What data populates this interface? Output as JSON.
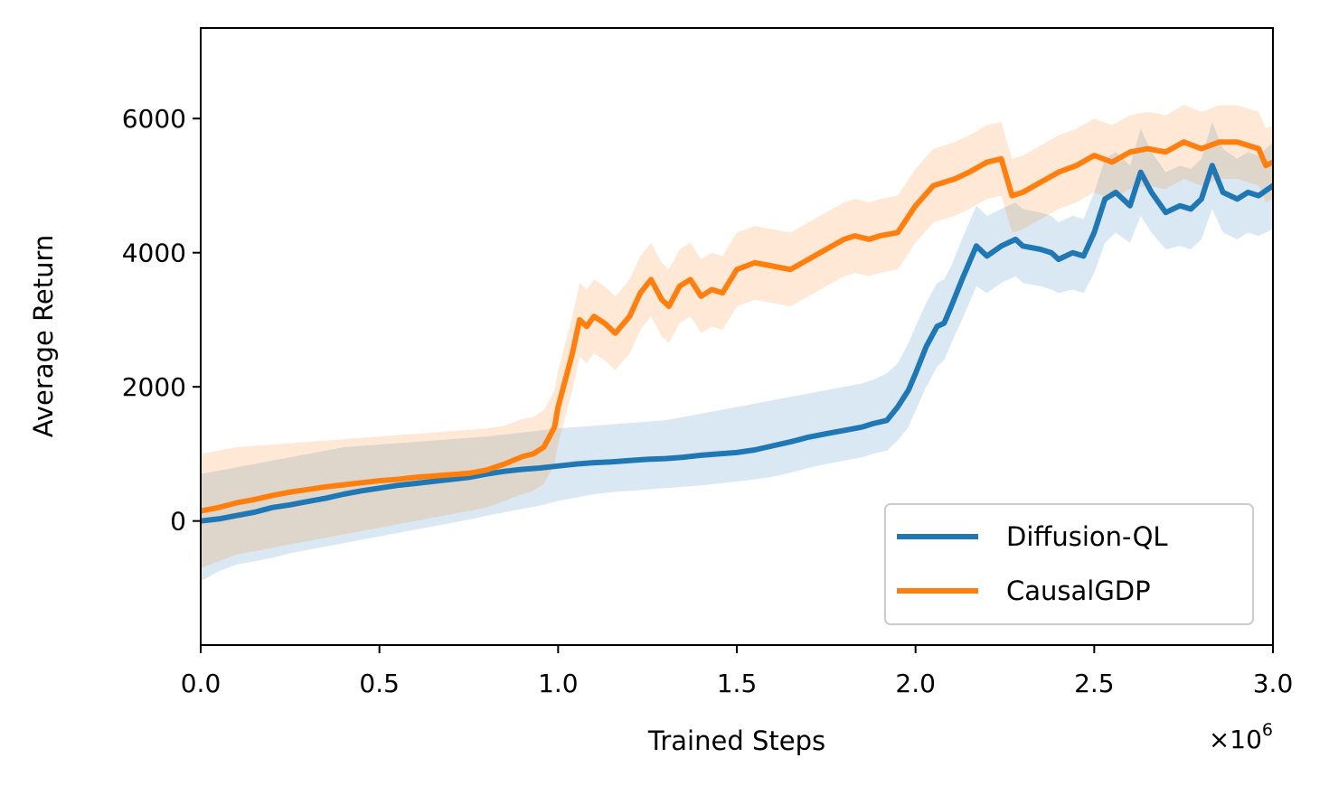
{
  "chart_data": {
    "type": "line",
    "xlabel": "Trained Steps",
    "ylabel": "Average Return",
    "x_multiplier_label": "×10",
    "x_multiplier_exp": "6",
    "xlim": [
      0,
      3000000
    ],
    "ylim": [
      -1850,
      7350
    ],
    "x_ticks": [
      0,
      500000,
      1000000,
      1500000,
      2000000,
      2500000,
      3000000
    ],
    "x_tick_labels": [
      "0.0",
      "0.5",
      "1.0",
      "1.5",
      "2.0",
      "2.5",
      "3.0"
    ],
    "y_ticks": [
      0,
      2000,
      4000,
      6000
    ],
    "y_tick_labels": [
      "0",
      "2000",
      "4000",
      "6000"
    ],
    "grid": false,
    "legend_position": "lower-right",
    "series": [
      {
        "name": "Diffusion-QL",
        "color": "#1f77b4",
        "band_opacity": 0.17,
        "x": [
          0,
          50000,
          100000,
          150000,
          200000,
          250000,
          300000,
          350000,
          400000,
          450000,
          500000,
          550000,
          600000,
          650000,
          700000,
          750000,
          800000,
          850000,
          900000,
          950000,
          1000000,
          1050000,
          1100000,
          1150000,
          1200000,
          1250000,
          1300000,
          1350000,
          1400000,
          1450000,
          1500000,
          1550000,
          1600000,
          1650000,
          1700000,
          1750000,
          1800000,
          1850000,
          1880000,
          1920000,
          1950000,
          1980000,
          2000000,
          2030000,
          2060000,
          2080000,
          2100000,
          2130000,
          2170000,
          2200000,
          2240000,
          2280000,
          2300000,
          2350000,
          2380000,
          2400000,
          2440000,
          2470000,
          2500000,
          2530000,
          2560000,
          2600000,
          2630000,
          2660000,
          2700000,
          2740000,
          2770000,
          2800000,
          2830000,
          2860000,
          2900000,
          2930000,
          2960000,
          3000000
        ],
        "y": [
          0,
          30,
          80,
          130,
          200,
          240,
          290,
          340,
          400,
          450,
          490,
          530,
          560,
          590,
          620,
          650,
          700,
          740,
          770,
          790,
          820,
          850,
          870,
          880,
          900,
          920,
          930,
          950,
          980,
          1000,
          1020,
          1060,
          1120,
          1180,
          1250,
          1300,
          1350,
          1400,
          1450,
          1500,
          1700,
          1950,
          2200,
          2600,
          2900,
          2950,
          3200,
          3600,
          4100,
          3950,
          4100,
          4200,
          4100,
          4050,
          4000,
          3900,
          4000,
          3950,
          4300,
          4800,
          4900,
          4700,
          5200,
          4900,
          4600,
          4700,
          4650,
          4800,
          5300,
          4900,
          4800,
          4900,
          4850,
          5000
        ],
        "lower": [
          -900,
          -750,
          -650,
          -600,
          -550,
          -480,
          -430,
          -380,
          -330,
          -280,
          -230,
          -180,
          -130,
          -80,
          -30,
          20,
          80,
          130,
          180,
          230,
          300,
          350,
          400,
          430,
          450,
          470,
          490,
          510,
          530,
          560,
          590,
          620,
          660,
          720,
          790,
          850,
          900,
          950,
          1000,
          1050,
          1200,
          1400,
          1650,
          2000,
          2300,
          2400,
          2650,
          3000,
          3500,
          3400,
          3550,
          3650,
          3550,
          3500,
          3450,
          3400,
          3450,
          3400,
          3700,
          4150,
          4300,
          4150,
          4550,
          4300,
          4050,
          4100,
          4050,
          4200,
          4650,
          4300,
          4200,
          4300,
          4250,
          4350
        ],
        "upper": [
          700,
          750,
          800,
          850,
          900,
          950,
          1000,
          1050,
          1100,
          1120,
          1140,
          1160,
          1180,
          1200,
          1220,
          1240,
          1260,
          1290,
          1320,
          1350,
          1380,
          1400,
          1420,
          1440,
          1460,
          1480,
          1500,
          1550,
          1600,
          1650,
          1700,
          1750,
          1800,
          1850,
          1900,
          1950,
          2000,
          2050,
          2100,
          2200,
          2350,
          2650,
          2900,
          3250,
          3550,
          3600,
          3800,
          4200,
          4700,
          4550,
          4650,
          4750,
          4650,
          4600,
          4550,
          4450,
          4550,
          4500,
          4900,
          5400,
          5500,
          5300,
          5850,
          5500,
          5200,
          5300,
          5250,
          5400,
          5950,
          5550,
          5400,
          5500,
          5450,
          5650
        ]
      },
      {
        "name": "CausalGDP",
        "color": "#ff7f0e",
        "band_opacity": 0.17,
        "x": [
          0,
          50000,
          100000,
          150000,
          200000,
          250000,
          300000,
          350000,
          400000,
          450000,
          500000,
          550000,
          600000,
          650000,
          700000,
          750000,
          800000,
          850000,
          900000,
          930000,
          960000,
          990000,
          1000000,
          1020000,
          1040000,
          1060000,
          1080000,
          1100000,
          1130000,
          1160000,
          1200000,
          1230000,
          1260000,
          1290000,
          1310000,
          1340000,
          1370000,
          1400000,
          1430000,
          1460000,
          1500000,
          1550000,
          1600000,
          1650000,
          1700000,
          1750000,
          1800000,
          1830000,
          1870000,
          1900000,
          1950000,
          2000000,
          2050000,
          2080000,
          2110000,
          2150000,
          2200000,
          2240000,
          2270000,
          2300000,
          2350000,
          2400000,
          2450000,
          2500000,
          2550000,
          2600000,
          2650000,
          2700000,
          2750000,
          2800000,
          2850000,
          2900000,
          2930000,
          2960000,
          2980000,
          3000000
        ],
        "y": [
          150,
          200,
          270,
          320,
          380,
          430,
          470,
          510,
          540,
          570,
          600,
          620,
          650,
          670,
          690,
          710,
          760,
          850,
          960,
          1000,
          1100,
          1400,
          1700,
          2100,
          2500,
          3000,
          2900,
          3050,
          2950,
          2800,
          3050,
          3400,
          3600,
          3300,
          3200,
          3500,
          3600,
          3350,
          3450,
          3400,
          3750,
          3850,
          3800,
          3750,
          3900,
          4050,
          4200,
          4250,
          4200,
          4250,
          4300,
          4700,
          5000,
          5050,
          5100,
          5200,
          5350,
          5400,
          4850,
          4900,
          5050,
          5200,
          5300,
          5450,
          5350,
          5500,
          5550,
          5500,
          5650,
          5550,
          5650,
          5650,
          5600,
          5550,
          5300,
          5350
        ],
        "lower": [
          -700,
          -600,
          -500,
          -450,
          -400,
          -350,
          -300,
          -250,
          -200,
          -150,
          -100,
          -50,
          0,
          50,
          100,
          150,
          200,
          300,
          400,
          450,
          550,
          850,
          1150,
          1550,
          1950,
          2450,
          2350,
          2500,
          2400,
          2250,
          2500,
          2850,
          3050,
          2750,
          2650,
          2950,
          3050,
          2800,
          2900,
          2850,
          3200,
          3300,
          3250,
          3200,
          3350,
          3500,
          3650,
          3700,
          3650,
          3700,
          3750,
          4150,
          4450,
          4500,
          4550,
          4650,
          4800,
          4850,
          4300,
          4350,
          4500,
          4650,
          4750,
          4900,
          4800,
          4950,
          5000,
          4950,
          5100,
          5000,
          5100,
          5100,
          5050,
          5000,
          4750,
          4800
        ],
        "upper": [
          1000,
          1050,
          1100,
          1120,
          1140,
          1160,
          1180,
          1200,
          1220,
          1240,
          1260,
          1280,
          1300,
          1320,
          1340,
          1360,
          1380,
          1420,
          1520,
          1550,
          1650,
          1950,
          2250,
          2650,
          3050,
          3550,
          3450,
          3600,
          3500,
          3350,
          3600,
          3950,
          4150,
          3850,
          3750,
          4050,
          4150,
          3900,
          4000,
          3950,
          4300,
          4400,
          4350,
          4300,
          4450,
          4600,
          4750,
          4800,
          4750,
          4800,
          4850,
          5250,
          5550,
          5600,
          5650,
          5750,
          5900,
          5950,
          5400,
          5450,
          5600,
          5750,
          5850,
          6000,
          5900,
          6050,
          6100,
          6050,
          6200,
          6100,
          6200,
          6200,
          6150,
          6100,
          5850,
          5900
        ]
      }
    ]
  }
}
